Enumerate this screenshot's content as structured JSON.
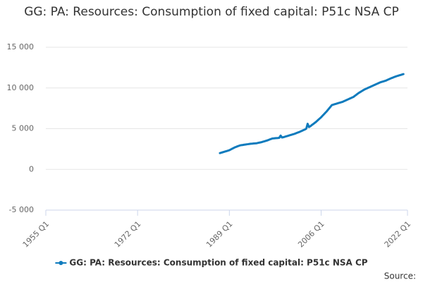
{
  "chart_data": {
    "type": "line",
    "title": "GG: PA: Resources: Consumption of fixed capital: P51c NSA CP",
    "source_label": "Source:",
    "x": [
      "1987 Q2",
      "1987 Q3",
      "1987 Q4",
      "1988 Q1",
      "1988 Q2",
      "1988 Q3",
      "1988 Q4",
      "1989 Q1",
      "1989 Q2",
      "1989 Q3",
      "1989 Q4",
      "1990 Q1",
      "1990 Q2",
      "1990 Q3",
      "1990 Q4",
      "1991 Q1",
      "1991 Q2",
      "1991 Q3",
      "1991 Q4",
      "1992 Q1",
      "1992 Q2",
      "1992 Q3",
      "1992 Q4",
      "1993 Q1",
      "1993 Q2",
      "1993 Q3",
      "1993 Q4",
      "1994 Q1",
      "1994 Q2",
      "1994 Q3",
      "1994 Q4",
      "1995 Q1",
      "1995 Q2",
      "1995 Q3",
      "1995 Q4",
      "1996 Q1",
      "1996 Q2",
      "1996 Q3",
      "1996 Q4",
      "1997 Q1",
      "1997 Q2",
      "1997 Q3",
      "1997 Q4",
      "1998 Q1",
      "1998 Q2",
      "1998 Q3",
      "1998 Q4",
      "1999 Q1",
      "1999 Q2",
      "1999 Q3",
      "1999 Q4",
      "2000 Q1",
      "2000 Q2",
      "2000 Q3",
      "2000 Q4",
      "2001 Q1",
      "2001 Q2",
      "2001 Q3",
      "2001 Q4",
      "2002 Q1",
      "2002 Q2",
      "2002 Q3",
      "2002 Q4",
      "2003 Q1",
      "2003 Q2",
      "2003 Q3",
      "2003 Q4",
      "2004 Q1",
      "2004 Q2",
      "2004 Q3",
      "2004 Q4",
      "2005 Q1",
      "2005 Q2",
      "2005 Q3",
      "2005 Q4",
      "2006 Q1",
      "2006 Q2",
      "2006 Q3",
      "2006 Q4",
      "2007 Q1",
      "2007 Q2",
      "2007 Q3",
      "2007 Q4",
      "2008 Q1",
      "2008 Q2",
      "2008 Q3",
      "2008 Q4",
      "2009 Q1",
      "2009 Q2",
      "2009 Q3",
      "2009 Q4",
      "2010 Q1",
      "2010 Q2",
      "2010 Q3",
      "2010 Q4",
      "2011 Q1",
      "2011 Q2",
      "2011 Q3",
      "2011 Q4",
      "2012 Q1",
      "2012 Q2",
      "2012 Q3",
      "2012 Q4",
      "2013 Q1",
      "2013 Q2",
      "2013 Q3",
      "2013 Q4",
      "2014 Q1",
      "2014 Q2",
      "2014 Q3",
      "2014 Q4",
      "2015 Q1",
      "2015 Q2",
      "2015 Q3",
      "2015 Q4",
      "2016 Q1",
      "2016 Q2",
      "2016 Q3",
      "2016 Q4",
      "2017 Q1",
      "2017 Q2",
      "2017 Q3",
      "2017 Q4",
      "2018 Q1",
      "2018 Q2",
      "2018 Q3",
      "2018 Q4",
      "2019 Q1",
      "2019 Q2",
      "2019 Q3",
      "2019 Q4",
      "2020 Q1",
      "2020 Q2",
      "2020 Q3",
      "2020 Q4",
      "2021 Q1",
      "2021 Q2"
    ],
    "series": [
      {
        "name": "GG: PA: Resources: Consumption of fixed capital: P51c NSA CP",
        "color": "#0f7bbd",
        "values": [
          2000,
          2050,
          2100,
          2150,
          2200,
          2250,
          2300,
          2350,
          2440,
          2530,
          2610,
          2700,
          2760,
          2830,
          2890,
          2950,
          2980,
          3000,
          3030,
          3050,
          3080,
          3100,
          3130,
          3150,
          3160,
          3180,
          3190,
          3200,
          3240,
          3280,
          3310,
          3350,
          3400,
          3450,
          3500,
          3550,
          3610,
          3680,
          3740,
          3800,
          3810,
          3830,
          3840,
          3850,
          3880,
          4150,
          3920,
          3950,
          4000,
          4050,
          4100,
          4150,
          4200,
          4250,
          4300,
          4350,
          4410,
          4480,
          4540,
          4600,
          4680,
          4750,
          4830,
          4900,
          5000,
          5600,
          5200,
          5300,
          5430,
          5550,
          5680,
          5800,
          5950,
          6100,
          6250,
          6400,
          6580,
          6750,
          6930,
          7100,
          7300,
          7500,
          7700,
          7900,
          7950,
          8000,
          8050,
          8100,
          8150,
          8200,
          8250,
          8300,
          8380,
          8450,
          8530,
          8600,
          8680,
          8750,
          8830,
          8900,
          9030,
          9150,
          9280,
          9400,
          9500,
          9600,
          9700,
          9800,
          9880,
          9950,
          10030,
          10100,
          10180,
          10250,
          10330,
          10400,
          10480,
          10550,
          10630,
          10700,
          10750,
          10800,
          10850,
          10900,
          10980,
          11050,
          11130,
          11200,
          11260,
          11330,
          11390,
          11450,
          11500,
          11550,
          11600,
          11650,
          11700
        ]
      }
    ],
    "xlim": [
      "1955 Q1",
      "2022 Q1"
    ],
    "xticks": [
      "1955 Q1",
      "1972 Q1",
      "1989 Q1",
      "2006 Q1",
      "2022 Q1"
    ],
    "ylim": [
      -5000,
      15000
    ],
    "yticks": [
      {
        "value": -5000,
        "label": "-5 000"
      },
      0,
      {
        "value": 5000,
        "label": "5 000"
      },
      {
        "value": 10000,
        "label": "10 000"
      },
      {
        "value": 15000,
        "label": "15 000"
      }
    ],
    "grid": true
  }
}
